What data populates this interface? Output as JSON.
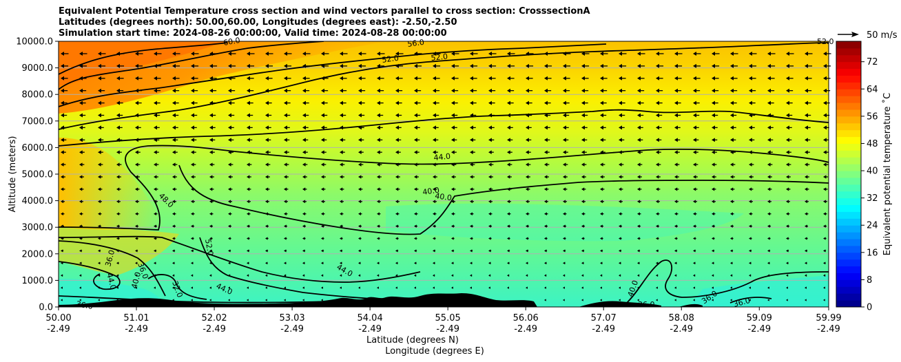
{
  "chart_data": {
    "type": "heatmap",
    "title_lines": [
      "Equivalent Potential Temperature cross section and wind vectors parallel to cross section: CrosssectionA",
      "Latitudes (degrees north): 50.00,60.00, Longitudes (degrees east): -2.50,-2.50",
      "Simulation start time: 2024-08-26 00:00:00, Valid time: 2024-08-28 00:00:00"
    ],
    "xlabel_lines": [
      "Latitude (degrees N)",
      "Longitude (degrees E)"
    ],
    "ylabel": "Altitude (meters)",
    "x_ticks": [
      {
        "lat": "50.00",
        "lon": "-2.49"
      },
      {
        "lat": "51.01",
        "lon": "-2.49"
      },
      {
        "lat": "52.02",
        "lon": "-2.49"
      },
      {
        "lat": "53.03",
        "lon": "-2.49"
      },
      {
        "lat": "54.04",
        "lon": "-2.49"
      },
      {
        "lat": "55.05",
        "lon": "-2.49"
      },
      {
        "lat": "56.06",
        "lon": "-2.49"
      },
      {
        "lat": "57.07",
        "lon": "-2.49"
      },
      {
        "lat": "58.08",
        "lon": "-2.49"
      },
      {
        "lat": "59.09",
        "lon": "-2.49"
      },
      {
        "lat": "59.99",
        "lon": "-2.49"
      }
    ],
    "xlim": [
      50.0,
      59.99
    ],
    "y_ticks": [
      "0.0",
      "1000.0",
      "2000.0",
      "3000.0",
      "4000.0",
      "5000.0",
      "6000.0",
      "7000.0",
      "8000.0",
      "9000.0",
      "10000.0"
    ],
    "ylim": [
      0,
      10000
    ],
    "grid": "horizontal",
    "colorbar": {
      "label": "Equivalent potential temperature $^\\circ$C",
      "label_display": "Equivalent potential temperature ˚C",
      "ticks": [
        "0",
        "8",
        "16",
        "24",
        "32",
        "40",
        "48",
        "56",
        "64",
        "72"
      ],
      "range": [
        0,
        78
      ],
      "colormap": "jet"
    },
    "quiver_key": {
      "label": "50 m/s",
      "speed": 50
    },
    "contour_labels": [
      "60.0",
      "56.0",
      "52.0",
      "52.0",
      "52.0",
      "52.0",
      "44.0",
      "40.0",
      "40.0",
      "48.0",
      "52.0",
      "44.0",
      "36.0",
      "44.0",
      "40.0",
      "36.0",
      "32.0",
      "36.0",
      "44.0",
      "40.0",
      "36.0",
      "36.0",
      "36.0",
      "32.0"
    ],
    "field_description": {
      "upper_layer_theta_e": [
        56,
        60
      ],
      "mid_layer_theta_e": [
        44,
        52
      ],
      "lower_layer_theta_e": [
        34,
        42
      ]
    }
  }
}
